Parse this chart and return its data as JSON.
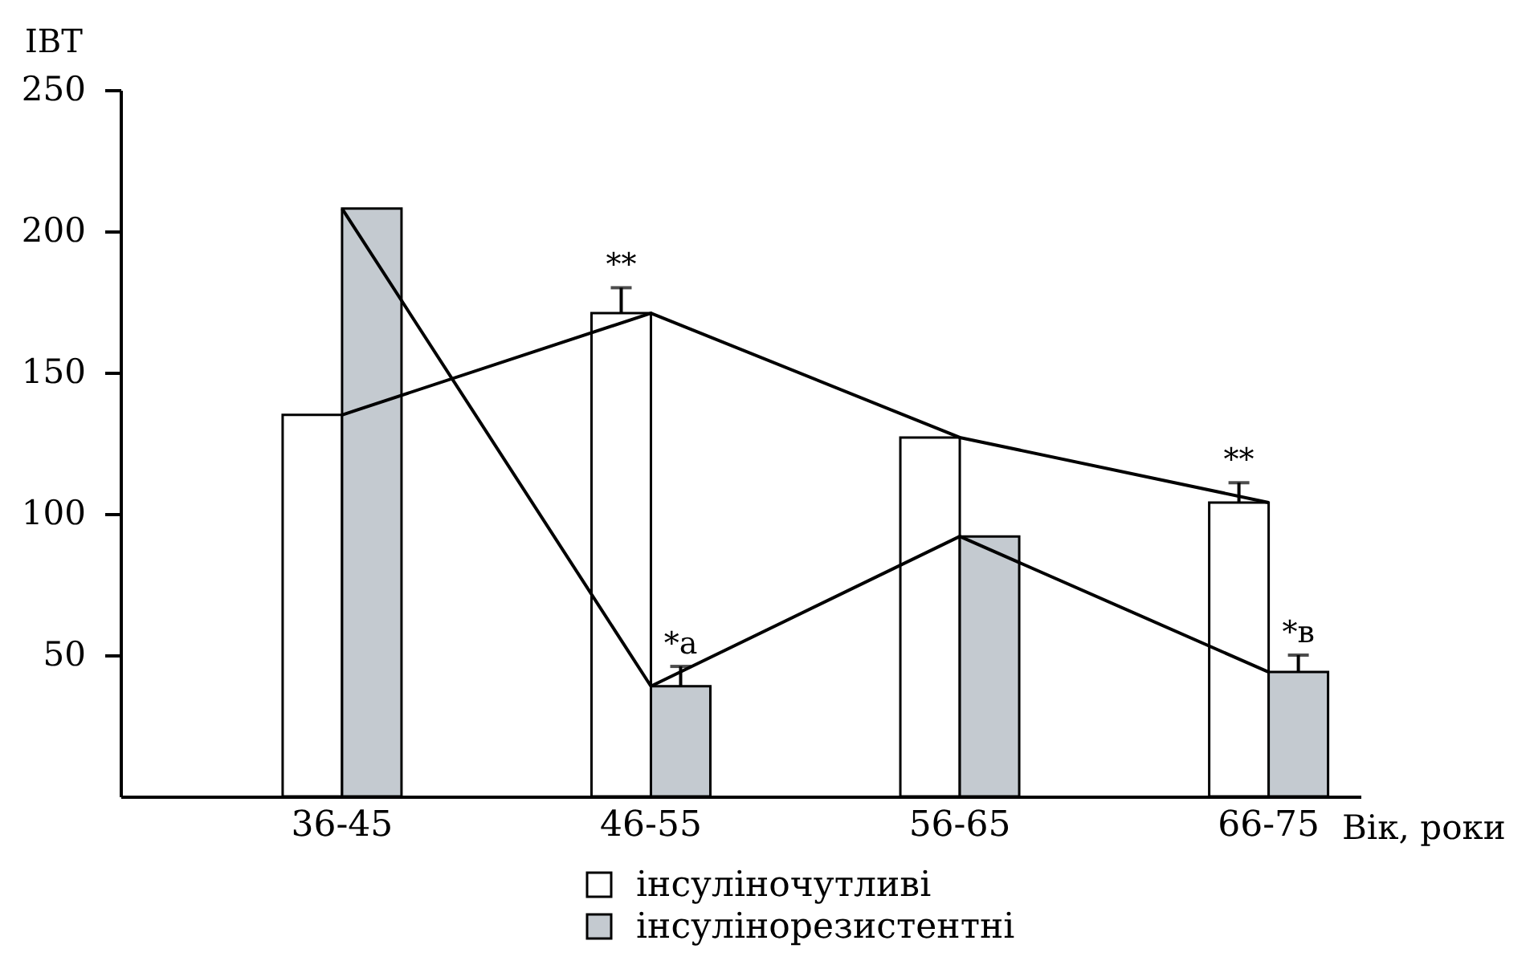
{
  "chart_data": {
    "type": "bar",
    "xlabel": "Вік, роки",
    "ylabel": "ІВТ",
    "categories": [
      "36-45",
      "46-55",
      "56-65",
      "66-75"
    ],
    "series": [
      {
        "name": "інсуліночутливі",
        "color": "#ffffff",
        "values": [
          135,
          171,
          127,
          104
        ],
        "errors": [
          null,
          [
            171,
            180
          ],
          null,
          [
            104,
            111
          ]
        ]
      },
      {
        "name": "інсулінорезистентні",
        "color": "#c4cad0",
        "values": [
          208,
          39,
          92,
          44
        ],
        "errors": [
          null,
          [
            39,
            46
          ],
          null,
          [
            44,
            50
          ]
        ]
      },
      {
        "type": "line",
        "color": "#000000",
        "values": [
          135,
          171,
          127,
          104
        ]
      },
      {
        "type": "line",
        "color": "#000000",
        "values": [
          208,
          39,
          92,
          44
        ]
      }
    ],
    "ylim": [
      0,
      250
    ],
    "yticks": [
      50,
      100,
      150,
      200,
      250
    ],
    "legend": "bottom",
    "annotations": [
      {
        "text": "**",
        "x": "46-55",
        "y": 171
      },
      {
        "text": "*а",
        "x": "46-55",
        "y": 39
      },
      {
        "text": "**",
        "x": "66-75",
        "y": 104
      },
      {
        "text": "*в",
        "x": "66-75",
        "y": 44
      }
    ]
  }
}
